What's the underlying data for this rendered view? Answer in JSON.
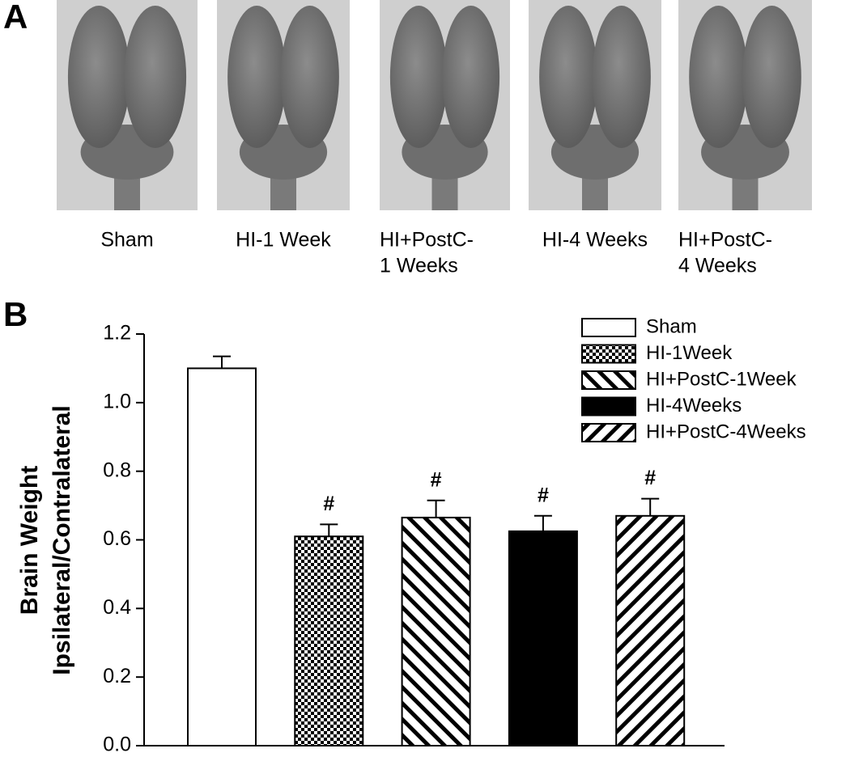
{
  "panel_a": {
    "letter": "A",
    "captions": [
      [
        "Sham"
      ],
      [
        "HI-1 Week"
      ],
      [
        "HI+PostC-",
        "1 Weeks"
      ],
      [
        "HI-4 Weeks"
      ],
      [
        "HI+PostC-",
        "4 Weeks"
      ]
    ]
  },
  "panel_b": {
    "letter": "B"
  },
  "chart_data": {
    "type": "bar",
    "ylabel": [
      "Brain Weight",
      "Ipsilateral/Contralateral"
    ],
    "categories": [
      null
    ],
    "series": [
      {
        "name": "Sham",
        "color": "#ffffff",
        "pattern": "solid",
        "values": [
          1.1
        ],
        "errors": [
          0.035
        ]
      },
      {
        "name": "HI-1Week",
        "color": "#000000",
        "pattern": "checker",
        "values": [
          0.61
        ],
        "errors": [
          0.035
        ],
        "annotation": "#"
      },
      {
        "name": "HI+PostC-1Week",
        "color": "#000000",
        "pattern": "back-diagonal",
        "values": [
          0.665
        ],
        "errors": [
          0.05
        ],
        "annotation": "#"
      },
      {
        "name": "HI-4Weeks",
        "color": "#000000",
        "pattern": "solid",
        "values": [
          0.625
        ],
        "errors": [
          0.045
        ],
        "annotation": "#"
      },
      {
        "name": "HI+PostC-4Weeks",
        "color": "#000000",
        "pattern": "forward-diagonal",
        "values": [
          0.67
        ],
        "errors": [
          0.05
        ],
        "annotation": "#"
      }
    ],
    "ylim": [
      0,
      1.2
    ],
    "yticks": [
      {
        "value": 0,
        "label": "0.0"
      },
      0.2,
      0.4,
      0.6,
      0.8,
      {
        "value": 1,
        "label": "1.0"
      },
      1.2
    ],
    "legend": "top-right"
  }
}
